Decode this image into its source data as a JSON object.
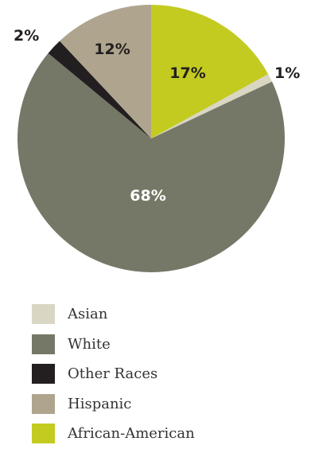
{
  "chart_data": {
    "type": "pie",
    "title": "",
    "slices": [
      {
        "label": "African-American",
        "value": 17,
        "text": "17%",
        "color": "#c3cb20",
        "text_color": "#231f20"
      },
      {
        "label": "Asian",
        "value": 1,
        "text": "1%",
        "color": "#d9d6c4",
        "text_color": "#231f20"
      },
      {
        "label": "White",
        "value": 68,
        "text": "68%",
        "color": "#757866",
        "text_color": "#ffffff"
      },
      {
        "label": "Other Races",
        "value": 2,
        "text": "2%",
        "color": "#231f20",
        "text_color": "#231f20"
      },
      {
        "label": "Hispanic",
        "value": 12,
        "text": "12%",
        "color": "#afa58f",
        "text_color": "#231f20"
      }
    ],
    "legend": {
      "placement": "bottom-left",
      "order": [
        "Asian",
        "White",
        "Other Races",
        "Hispanic",
        "African-American"
      ]
    }
  }
}
